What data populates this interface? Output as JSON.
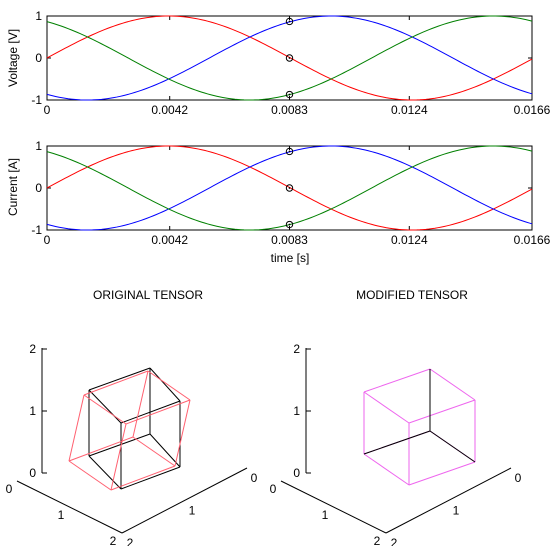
{
  "chart_data": [
    {
      "type": "line",
      "ylabel": "Voltage [V]",
      "xlabel": "",
      "xlim": [
        0,
        0.0166
      ],
      "ylim": [
        -1,
        1
      ],
      "xticks": [
        0,
        0.0042,
        0.0083,
        0.0124,
        0.0166
      ],
      "xtick_labels": [
        "0",
        "0.0042",
        "0.0083",
        "0.0124",
        "0.0166"
      ],
      "yticks": [
        -1,
        0,
        1
      ],
      "ytick_labels": [
        "-1",
        "0",
        "1"
      ],
      "frequency_hz": 60,
      "series": [
        {
          "color": "#ff0000",
          "phase_deg": 0
        },
        {
          "color": "#0000ff",
          "phase_deg": -120
        },
        {
          "color": "#008000",
          "phase_deg": 120
        }
      ],
      "markers": [
        {
          "t": 0.0083,
          "v": 0.87
        },
        {
          "t": 0.0083,
          "v": 0.0
        },
        {
          "t": 0.0083,
          "v": -0.87
        }
      ]
    },
    {
      "type": "line",
      "ylabel": "Current [A]",
      "xlabel": "time [s]",
      "xlim": [
        0,
        0.0166
      ],
      "ylim": [
        -1,
        1
      ],
      "xticks": [
        0,
        0.0042,
        0.0083,
        0.0124,
        0.0166
      ],
      "xtick_labels": [
        "0",
        "0.0042",
        "0.0083",
        "0.0124",
        "0.0166"
      ],
      "yticks": [
        -1,
        0,
        1
      ],
      "ytick_labels": [
        "-1",
        "0",
        "1"
      ],
      "frequency_hz": 60,
      "series": [
        {
          "color": "#ff0000",
          "phase_deg": 0
        },
        {
          "color": "#0000ff",
          "phase_deg": -120
        },
        {
          "color": "#008000",
          "phase_deg": 120
        }
      ],
      "markers": [
        {
          "t": 0.0083,
          "v": 0.87
        },
        {
          "t": 0.0083,
          "v": 0.0
        },
        {
          "t": 0.0083,
          "v": -0.87
        }
      ]
    },
    {
      "type": "3d-wireframe",
      "title": "ORIGINAL TENSOR",
      "z_tick_labels": [
        "0",
        "1",
        "2"
      ],
      "x_tick_labels": [
        "0",
        "1",
        "2"
      ],
      "y_tick_labels": [
        "2",
        "1",
        "0"
      ],
      "cubes": [
        {
          "color": "#000000",
          "shape": "reference-cube"
        },
        {
          "color": "#ff6070",
          "shape": "skewed-cube"
        }
      ]
    },
    {
      "type": "3d-wireframe",
      "title": "MODIFIED TENSOR",
      "z_tick_labels": [
        "0",
        "1",
        "2"
      ],
      "x_tick_labels": [
        "0",
        "1",
        "2"
      ],
      "y_tick_labels": [
        "2",
        "1",
        "0"
      ],
      "cubes": [
        {
          "color": "#000000",
          "shape": "reference-cube"
        },
        {
          "color": "#ee66ee",
          "shape": "reference-cube"
        }
      ]
    }
  ]
}
